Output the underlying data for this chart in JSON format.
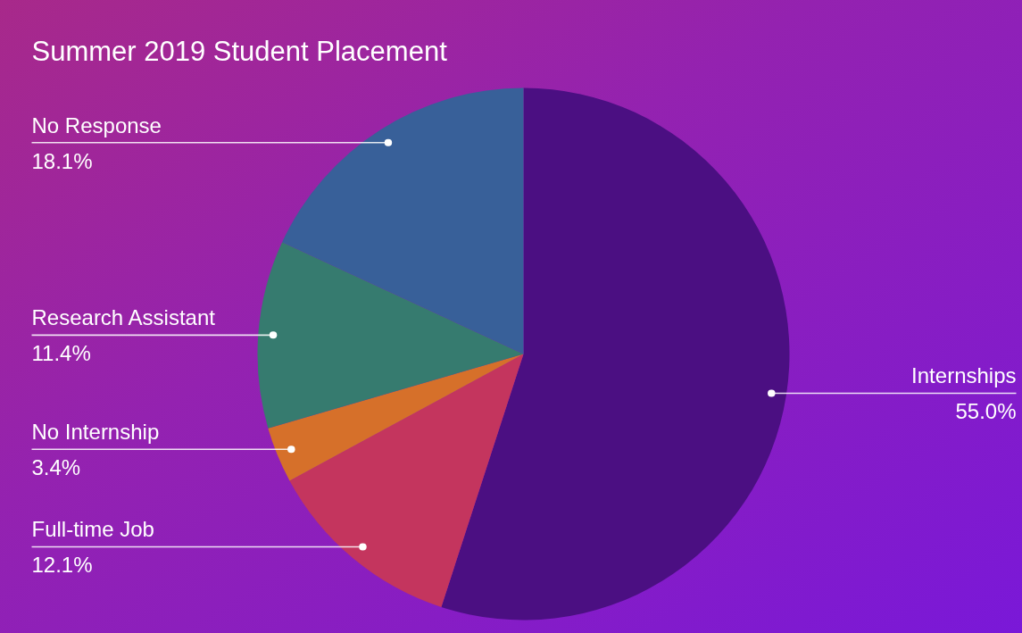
{
  "chart_data": {
    "type": "pie",
    "title": "Summer 2019 Student Placement",
    "categories": [
      "Internships",
      "Full-time Job",
      "No Internship",
      "Research Assistant",
      "No Response"
    ],
    "values": [
      55.0,
      12.1,
      3.4,
      11.4,
      18.1
    ],
    "value_labels": [
      "55.0%",
      "12.1%",
      "3.4%",
      "11.4%",
      "18.1%"
    ],
    "colors": [
      "#4b0f82",
      "#c4355e",
      "#d6702a",
      "#367b6f",
      "#386099"
    ]
  }
}
